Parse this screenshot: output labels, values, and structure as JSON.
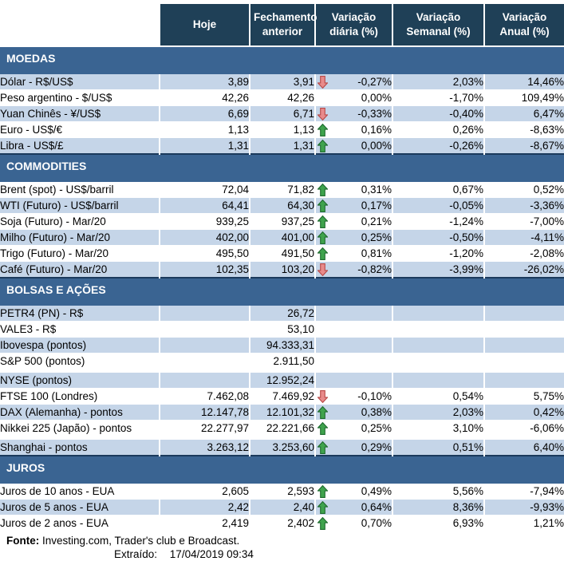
{
  "colors": {
    "header_bg": "#1F4057",
    "band_bg": "#3A6492",
    "band_border": "#1B3A5C",
    "row_shaded": "#C5D5E8",
    "arrow_up_fill": "#3FA34D",
    "arrow_up_border": "#1F6B2F",
    "arrow_down_fill": "#E88B8B",
    "arrow_down_border": "#B94A48"
  },
  "chart_data": {
    "type": "table",
    "columns": [
      "",
      "Hoje",
      "Fechamento anterior",
      "Variação diária (%)",
      "Variação Semanal (%)",
      "Variação Anual (%)"
    ],
    "sections": [
      {
        "title": "MOEDAS",
        "rows": [
          {
            "label": "Dólar - R$/US$",
            "hoje": "3,89",
            "fechamento": "3,91",
            "arrow": "down",
            "var_diaria": "-0,27%",
            "var_semanal": "2,03%",
            "var_anual": "14,46%",
            "shaded": true
          },
          {
            "label": "Peso argentino - $/US$",
            "hoje": "42,26",
            "fechamento": "42,26",
            "arrow": null,
            "var_diaria": "0,00%",
            "var_semanal": "-1,70%",
            "var_anual": "109,49%",
            "shaded": false
          },
          {
            "label": "Yuan Chinês - ¥/US$",
            "hoje": "6,69",
            "fechamento": "6,71",
            "arrow": "down",
            "var_diaria": "-0,33%",
            "var_semanal": "-0,40%",
            "var_anual": "6,47%",
            "shaded": true
          },
          {
            "label": "Euro - US$/€",
            "hoje": "1,13",
            "fechamento": "1,13",
            "arrow": "up",
            "var_diaria": "0,16%",
            "var_semanal": "0,26%",
            "var_anual": "-8,63%",
            "shaded": false
          },
          {
            "label": "Libra - US$/£",
            "hoje": "1,31",
            "fechamento": "1,31",
            "arrow": "up",
            "var_diaria": "0,00%",
            "var_semanal": "-0,26%",
            "var_anual": "-8,67%",
            "shaded": true
          }
        ]
      },
      {
        "title": "COMMODITIES",
        "rows": [
          {
            "label": "Brent (spot) - US$/barril",
            "hoje": "72,04",
            "fechamento": "71,82",
            "arrow": "up",
            "var_diaria": "0,31%",
            "var_semanal": "0,67%",
            "var_anual": "0,52%",
            "shaded": false
          },
          {
            "label": "WTI (Futuro) - US$/barril",
            "hoje": "64,41",
            "fechamento": "64,30",
            "arrow": "up",
            "var_diaria": "0,17%",
            "var_semanal": "-0,05%",
            "var_anual": "-3,36%",
            "shaded": true
          },
          {
            "label": "Soja (Futuro) - Mar/20",
            "hoje": "939,25",
            "fechamento": "937,25",
            "arrow": "up",
            "var_diaria": "0,21%",
            "var_semanal": "-1,24%",
            "var_anual": "-7,00%",
            "shaded": false
          },
          {
            "label": "Milho (Futuro) - Mar/20",
            "hoje": "402,00",
            "fechamento": "401,00",
            "arrow": "up",
            "var_diaria": "0,25%",
            "var_semanal": "-0,50%",
            "var_anual": "-4,11%",
            "shaded": true
          },
          {
            "label": "Trigo (Futuro) - Mar/20",
            "hoje": "495,50",
            "fechamento": "491,50",
            "arrow": "up",
            "var_diaria": "0,81%",
            "var_semanal": "-1,20%",
            "var_anual": "-2,08%",
            "shaded": false
          },
          {
            "label": "Café (Futuro) - Mar/20",
            "hoje": "102,35",
            "fechamento": "103,20",
            "arrow": "down",
            "var_diaria": "-0,82%",
            "var_semanal": "-3,99%",
            "var_anual": "-26,02%",
            "shaded": true
          }
        ]
      },
      {
        "title": "BOLSAS E AÇÕES",
        "rows": [
          {
            "label": "PETR4 (PN) - R$",
            "hoje": "",
            "fechamento": "26,72",
            "arrow": null,
            "var_diaria": "",
            "var_semanal": "",
            "var_anual": "",
            "shaded": true
          },
          {
            "label": "VALE3 - R$",
            "hoje": "",
            "fechamento": "53,10",
            "arrow": null,
            "var_diaria": "",
            "var_semanal": "",
            "var_anual": "",
            "shaded": false
          },
          {
            "label": "Ibovespa (pontos)",
            "hoje": "",
            "fechamento": "94.333,31",
            "arrow": null,
            "var_diaria": "",
            "var_semanal": "",
            "var_anual": "",
            "shaded": true
          },
          {
            "label": "S&P 500 (pontos)",
            "hoje": "",
            "fechamento": "2.911,50",
            "arrow": null,
            "var_diaria": "",
            "var_semanal": "",
            "var_anual": "",
            "shaded": false
          },
          {
            "label": "NYSE (pontos)",
            "hoje": "",
            "fechamento": "12.952,24",
            "arrow": null,
            "var_diaria": "",
            "var_semanal": "",
            "var_anual": "",
            "shaded": true,
            "gap_before": true
          },
          {
            "label": "FTSE 100 (Londres)",
            "hoje": "7.462,08",
            "fechamento": "7.469,92",
            "arrow": "down",
            "var_diaria": "-0,10%",
            "var_semanal": "0,54%",
            "var_anual": "5,75%",
            "shaded": false
          },
          {
            "label": "DAX (Alemanha) - pontos",
            "hoje": "12.147,78",
            "fechamento": "12.101,32",
            "arrow": "up",
            "var_diaria": "0,38%",
            "var_semanal": "2,03%",
            "var_anual": "0,42%",
            "shaded": true
          },
          {
            "label": "Nikkei 225 (Japão) - pontos",
            "hoje": "22.277,97",
            "fechamento": "22.221,66",
            "arrow": "up",
            "var_diaria": "0,25%",
            "var_semanal": "3,10%",
            "var_anual": "-6,06%",
            "shaded": false
          },
          {
            "label": "Shanghai - pontos",
            "hoje": "3.263,12",
            "fechamento": "3.253,60",
            "arrow": "up",
            "var_diaria": "0,29%",
            "var_semanal": "0,51%",
            "var_anual": "6,40%",
            "shaded": true,
            "gap_before": true
          }
        ]
      },
      {
        "title": "JUROS",
        "rows": [
          {
            "label": "Juros de 10 anos - EUA",
            "hoje": "2,605",
            "fechamento": "2,593",
            "arrow": "up",
            "var_diaria": "0,49%",
            "var_semanal": "5,56%",
            "var_anual": "-7,94%",
            "shaded": false
          },
          {
            "label": "Juros de 5 anos - EUA",
            "hoje": "2,42",
            "fechamento": "2,40",
            "arrow": "up",
            "var_diaria": "0,64%",
            "var_semanal": "8,36%",
            "var_anual": "-9,93%",
            "shaded": true
          },
          {
            "label": "Juros de 2 anos - EUA",
            "hoje": "2,419",
            "fechamento": "2,402",
            "arrow": "up",
            "var_diaria": "0,70%",
            "var_semanal": "6,93%",
            "var_anual": "1,21%",
            "shaded": false
          }
        ]
      }
    ]
  },
  "footer": {
    "source_label": "Fonte:",
    "source_text": "Investing.com, Trader's club e Broadcast.",
    "extracted_label": "Extraído:",
    "extracted_value": "17/04/2019 09:34"
  }
}
